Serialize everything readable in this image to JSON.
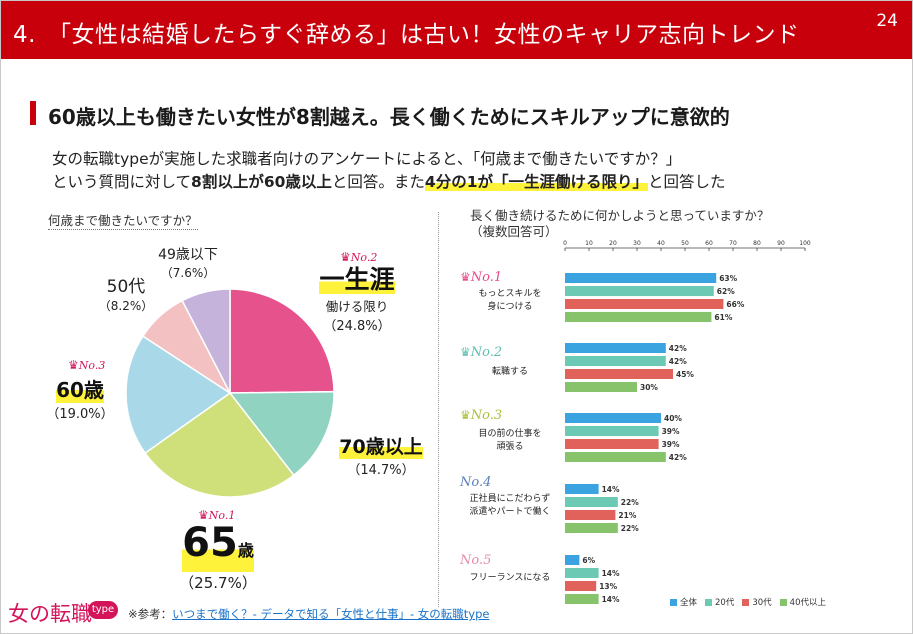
{
  "header": {
    "title": "4.　「女性は結婚したらすぐ辞める」は古い！女性のキャリア志向トレンド",
    "page_number": "24"
  },
  "section": {
    "title": "60歳以上も働きたい女性が8割越え。長く働くためにスキルアップに意欲的"
  },
  "intro": {
    "line1": "女の転職typeが実施した求職者向けのアンケートによると、「何歳まで働きたいですか？」",
    "line2_a": "という質問に対して",
    "line2_b": "8割以上が60歳以上",
    "line2_c": "と回答。また",
    "line2_d": "4分の1が「一生涯働ける限り」",
    "line2_e": "と回答した"
  },
  "left_chart": {
    "question": "何歳まで働きたいですか？",
    "labels": {
      "lifetime_rank": "No.2",
      "lifetime_big": "一生涯",
      "lifetime_sub": "働ける限り",
      "lifetime_pct": "（24.8%）",
      "s70_big": "70歳以上",
      "s70_pct": "（14.7%）",
      "s65_rank": "No.1",
      "s65_big": "65",
      "s65_unit": "歳",
      "s65_pct": "（25.7%）",
      "s60_rank": "No.3",
      "s60_big": "60歳",
      "s60_pct": "（19.0%）",
      "s50_big": "50代",
      "s50_pct": "（8.2%）",
      "s49_big": "49歳以下",
      "s49_pct": "（7.6%）"
    }
  },
  "right_chart": {
    "question_line1": "長く働き続けるために何かしようと思っていますか？",
    "question_line2": "（複数回答可）",
    "ranks": [
      "No.1",
      "No.2",
      "No.3",
      "No.4",
      "No.5"
    ],
    "item_lines": [
      [
        "もっとスキルを",
        "身につける"
      ],
      [
        "転職する"
      ],
      [
        "目の前の仕事を",
        "頑張る"
      ],
      [
        "正社員にこだわらず",
        "派遣やパートで働く"
      ],
      [
        "フリーランスになる"
      ]
    ],
    "legend": [
      "全体",
      "20代",
      "30代",
      "40代以上"
    ]
  },
  "chart_data": [
    {
      "type": "pie",
      "title": "何歳まで働きたいですか？",
      "categories": [
        "一生涯働ける限り",
        "70歳以上",
        "65歳",
        "60歳",
        "50代",
        "49歳以下"
      ],
      "values": [
        24.8,
        14.7,
        25.7,
        19.0,
        8.2,
        7.6
      ],
      "colors": [
        "#e6528c",
        "#8fd3c0",
        "#cfe07a",
        "#a9d9e8",
        "#f3c1c1",
        "#c5b3db"
      ]
    },
    {
      "type": "bar",
      "orientation": "horizontal",
      "title": "長く働き続けるために何かしようと思っていますか？（複数回答可）",
      "categories": [
        "もっとスキルを身につける",
        "転職する",
        "目の前の仕事を頑張る",
        "正社員にこだわらず派遣やパートで働く",
        "フリーランスになる"
      ],
      "series": [
        {
          "name": "全体",
          "values": [
            63,
            42,
            40,
            14,
            6
          ],
          "color": "#3aa3e0"
        },
        {
          "name": "20代",
          "values": [
            62,
            42,
            39,
            22,
            14
          ],
          "color": "#6ccab4"
        },
        {
          "name": "30代",
          "values": [
            66,
            45,
            39,
            21,
            13
          ],
          "color": "#e0625a"
        },
        {
          "name": "40代以上",
          "values": [
            61,
            30,
            42,
            22,
            14
          ],
          "color": "#86c36a"
        }
      ],
      "xlim": [
        0,
        100
      ],
      "xticks": [
        "0",
        "10",
        "20",
        "30",
        "40",
        "50",
        "60",
        "70",
        "80",
        "90",
        "100"
      ],
      "value_suffix": "%"
    }
  ]
}
